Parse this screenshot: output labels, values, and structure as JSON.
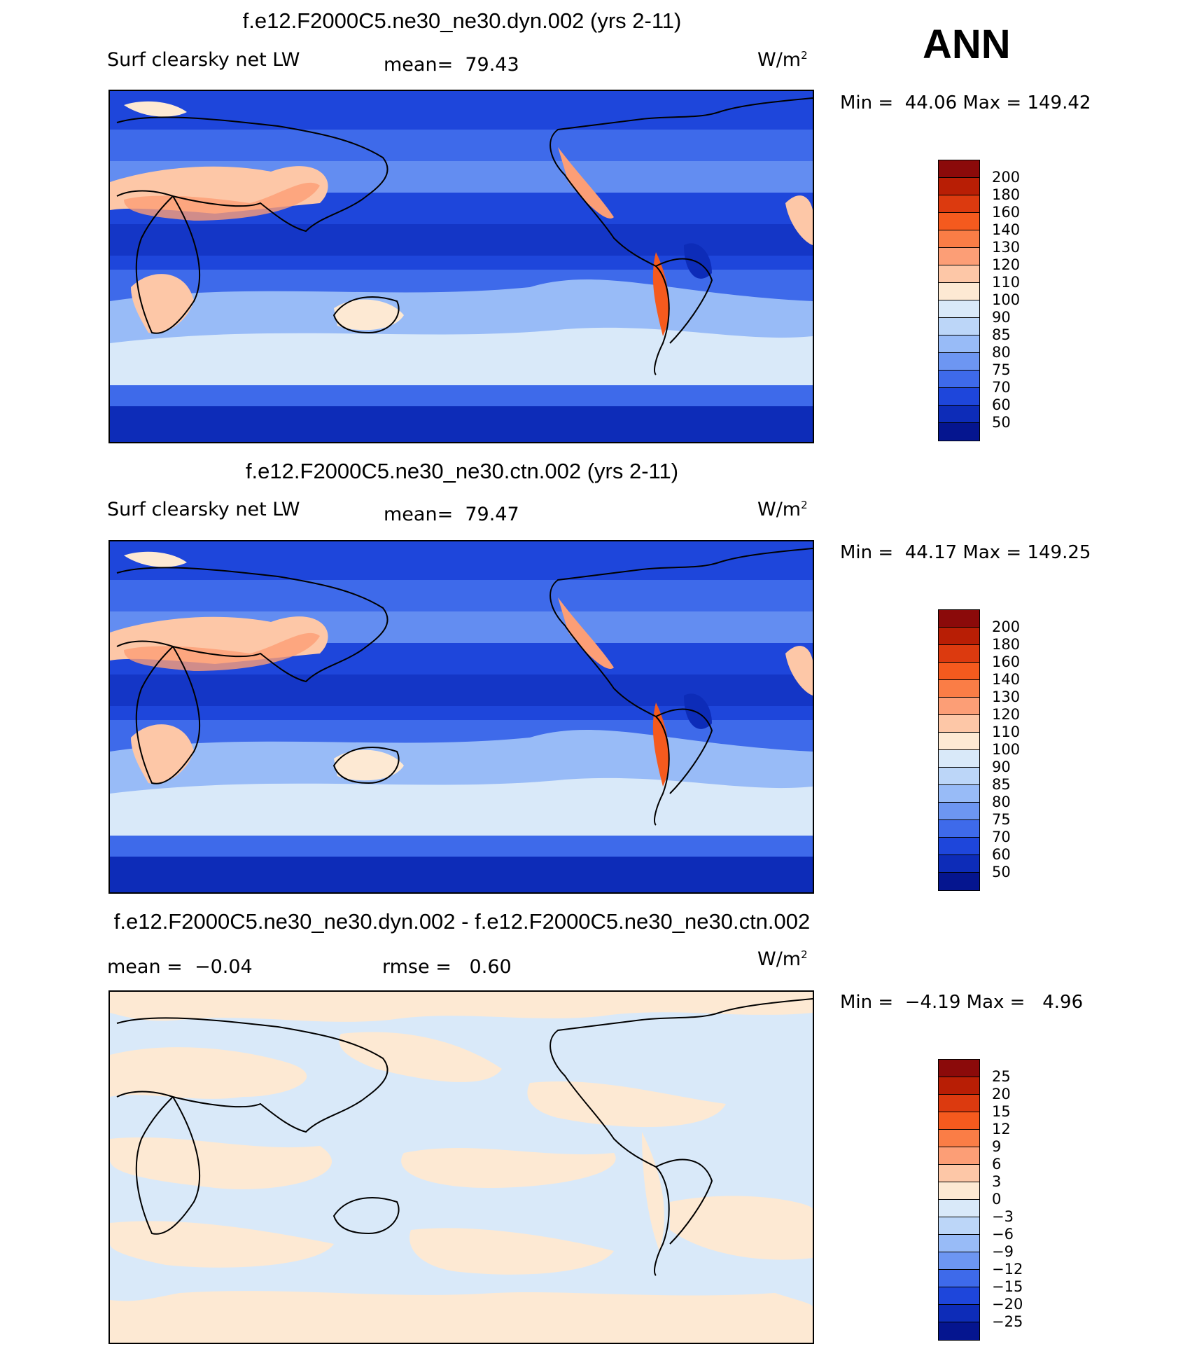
{
  "season": "ANN",
  "units_base": "W/m",
  "units_sup": "2",
  "panels": [
    {
      "case_title": "f.e12.F2000C5.ne30_ne30.dyn.002 (yrs 2-11)",
      "variable": "Surf clearsky net LW",
      "stat_text": "mean=  79.43",
      "min_max_text": "Min =  44.06 Max = 149.42",
      "colorbar": "abs"
    },
    {
      "case_title": "f.e12.F2000C5.ne30_ne30.ctn.002 (yrs 2-11)",
      "variable": "Surf clearsky net LW",
      "stat_text": "mean=  79.47",
      "min_max_text": "Min =  44.17 Max = 149.25",
      "colorbar": "abs"
    },
    {
      "case_title": "f.e12.F2000C5.ne30_ne30.dyn.002 - f.e12.F2000C5.ne30_ne30.ctn.002",
      "mean_text": "mean =  −0.04",
      "rmse_text": "rmse =   0.60",
      "min_max_text": "Min =  −4.19 Max =   4.96",
      "colorbar": "diff"
    }
  ],
  "colorbars": {
    "abs": {
      "colors": [
        "#8b0a0a",
        "#b81e05",
        "#dc3a0f",
        "#f55a1e",
        "#fa7d46",
        "#fc9e76",
        "#fdc7a7",
        "#fde9d3",
        "#d9e9f9",
        "#bcd6f8",
        "#98bbf7",
        "#6d96f2",
        "#3e6aea",
        "#1e46db",
        "#0d2cb8",
        "#05158f"
      ],
      "labels": [
        "200",
        "180",
        "160",
        "140",
        "130",
        "120",
        "110",
        "100",
        "90",
        "85",
        "80",
        "75",
        "70",
        "60",
        "50"
      ]
    },
    "diff": {
      "colors": [
        "#8b0a0a",
        "#b81e05",
        "#dc3a0f",
        "#f55a1e",
        "#fa7d46",
        "#fc9e76",
        "#fdc7a7",
        "#fde9d3",
        "#d9e9f9",
        "#bcd6f8",
        "#98bbf7",
        "#6d96f2",
        "#3e6aea",
        "#1e46db",
        "#0d2cb8",
        "#05158f"
      ],
      "labels": [
        "25",
        "20",
        "15",
        "12",
        "9",
        "6",
        "3",
        "0",
        "−3",
        "−6",
        "−9",
        "−12",
        "−15",
        "−20",
        "−25"
      ]
    }
  }
}
